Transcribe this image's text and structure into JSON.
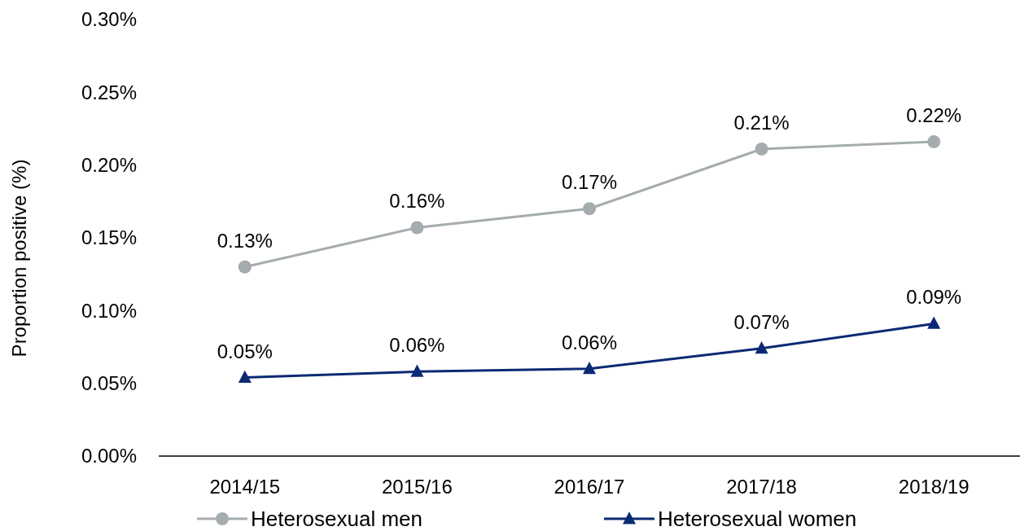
{
  "chart_data": {
    "type": "line",
    "ylabel": "Proportion positive (%)",
    "categories": [
      "2014/15",
      "2015/16",
      "2016/17",
      "2017/18",
      "2018/19"
    ],
    "series": [
      {
        "name": "Heterosexual men",
        "color": "#a5acaf",
        "marker": "circle",
        "values": [
          0.13,
          0.157,
          0.17,
          0.211,
          0.216
        ],
        "value_labels": [
          "0.13%",
          "0.16%",
          "0.17%",
          "0.21%",
          "0.22%"
        ]
      },
      {
        "name": "Heterosexual women",
        "color": "#0b2a74",
        "marker": "triangle",
        "values": [
          0.054,
          0.058,
          0.06,
          0.074,
          0.091
        ],
        "value_labels": [
          "0.05%",
          "0.06%",
          "0.06%",
          "0.07%",
          "0.09%"
        ]
      }
    ],
    "ylim": [
      0,
      0.3
    ],
    "yticks": [
      {
        "value": 0,
        "label": "0.00%"
      },
      {
        "value": 0.05,
        "label": "0.05%"
      },
      {
        "value": 0.1,
        "label": "0.10%"
      },
      {
        "value": 0.15,
        "label": "0.15%"
      },
      {
        "value": 0.2,
        "label": "0.20%"
      },
      {
        "value": 0.25,
        "label": "0.25%"
      },
      {
        "value": 0.3,
        "label": "0.30%"
      }
    ],
    "grid": false,
    "legend": "bottom",
    "line_style": "solid"
  }
}
